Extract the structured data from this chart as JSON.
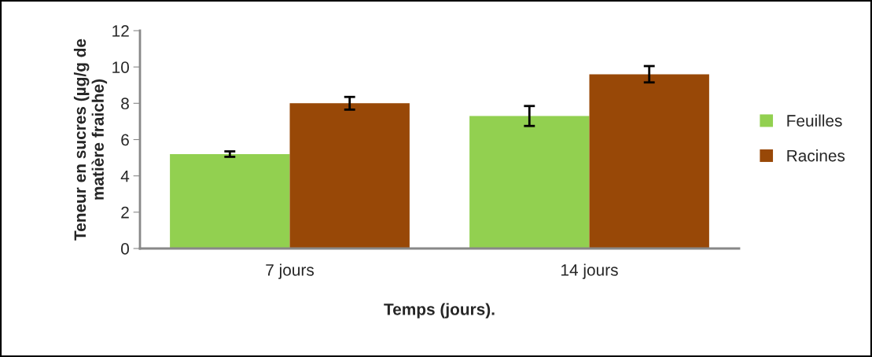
{
  "chart_data": {
    "type": "bar",
    "xlabel": "Temps (jours).",
    "ylabel": "Teneur en sucres (µg/g de matière fraiche)",
    "categories": [
      "7 jours",
      "14 jours"
    ],
    "series": [
      {
        "name": "Feuilles",
        "color": "#92d050",
        "values": [
          5.2,
          7.3
        ],
        "errors": [
          0.15,
          0.55
        ]
      },
      {
        "name": "Racines",
        "color": "#984807",
        "values": [
          8.0,
          9.6
        ],
        "errors": [
          0.35,
          0.45
        ]
      }
    ],
    "ylim": [
      0,
      12
    ],
    "yticks": [
      0,
      2,
      4,
      6,
      8,
      10,
      12
    ],
    "grid": false,
    "legend": "right"
  }
}
